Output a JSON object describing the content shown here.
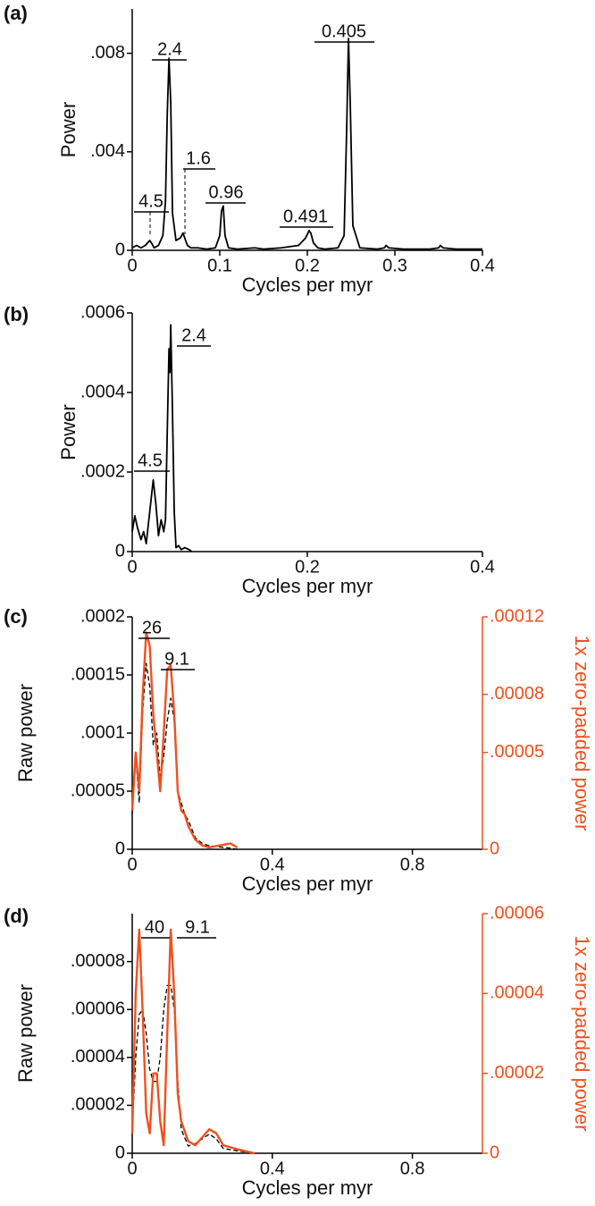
{
  "chart_data": [
    {
      "type": "line",
      "title": "(a)",
      "xlabel": "Cycles per myr",
      "ylabel": "Power",
      "xlim": [
        0,
        0.4
      ],
      "xticks": [
        0,
        0.1,
        0.2,
        0.3,
        0.4
      ],
      "ylim": [
        0,
        0.0098
      ],
      "yticks": [
        0,
        {
          "value": 0.004,
          "label": ".004"
        },
        {
          "value": 0.008,
          "label": ".008"
        }
      ],
      "x": [
        0,
        0.005,
        0.01,
        0.015,
        0.02,
        0.022,
        0.025,
        0.03,
        0.035,
        0.038,
        0.04,
        0.042,
        0.044,
        0.046,
        0.05,
        0.055,
        0.058,
        0.06,
        0.063,
        0.067,
        0.075,
        0.085,
        0.095,
        0.1,
        0.102,
        0.104,
        0.106,
        0.11,
        0.12,
        0.14,
        0.15,
        0.17,
        0.19,
        0.198,
        0.202,
        0.204,
        0.207,
        0.212,
        0.22,
        0.235,
        0.242,
        0.245,
        0.247,
        0.249,
        0.252,
        0.26,
        0.28,
        0.288,
        0.29,
        0.293,
        0.31,
        0.34,
        0.35,
        0.352,
        0.355,
        0.37,
        0.4
      ],
      "series": [
        {
          "color": "#000000",
          "linestyle": "solid",
          "values": [
            0.0001,
            0.0002,
            0.0001,
            0.0002,
            0.0004,
            0.0003,
            0.0001,
            0.0002,
            0.0006,
            0.002,
            0.0055,
            0.0078,
            0.006,
            0.0015,
            0.0004,
            0.0005,
            0.0007,
            0.0005,
            0.0002,
            0.0001,
            0.0001,
            5e-05,
            0.0001,
            0.0006,
            0.0016,
            0.0018,
            0.0006,
            0.0001,
            5e-05,
            0.0001,
            5e-05,
            0.0001,
            0.0002,
            0.0005,
            0.0008,
            0.0007,
            0.0003,
            0.0001,
            5e-05,
            0.0001,
            0.0006,
            0.005,
            0.0086,
            0.006,
            0.001,
            0.0001,
            5e-05,
            0.0001,
            0.0002,
            0.0001,
            5e-05,
            5e-05,
            0.0001,
            0.0002,
            0.0001,
            5e-05,
            5e-05
          ]
        }
      ],
      "annotations": [
        "4.5",
        "2.4",
        "1.6",
        "0.96",
        "0.491",
        "0.405"
      ]
    },
    {
      "type": "line",
      "title": "(b)",
      "xlabel": "Cycles per myr",
      "ylabel": "Power",
      "xlim": [
        0,
        0.4
      ],
      "xticks": [
        0,
        0.2,
        0.4
      ],
      "ylim": [
        0,
        0.0006
      ],
      "yticks": [
        0,
        {
          "value": 0.0002,
          "label": ".0002"
        },
        {
          "value": 0.0004,
          "label": ".0004"
        },
        {
          "value": 0.0006,
          "label": ".0006"
        }
      ],
      "x": [
        0,
        0.003,
        0.006,
        0.01,
        0.013,
        0.016,
        0.02,
        0.024,
        0.027,
        0.03,
        0.033,
        0.036,
        0.038,
        0.04,
        0.042,
        0.043,
        0.044,
        0.046,
        0.048,
        0.05,
        0.053,
        0.056,
        0.06,
        0.065,
        0.068
      ],
      "series": [
        {
          "color": "#000000",
          "linestyle": "solid",
          "values": [
            5e-05,
            9e-05,
            6e-05,
            3e-05,
            5e-05,
            2e-05,
            0.0001,
            0.00018,
            0.00012,
            4e-05,
            8e-05,
            5e-05,
            8e-05,
            0.0003,
            0.00051,
            0.00045,
            0.00057,
            0.00035,
            0.0001,
            1e-05,
            1.5e-05,
            5e-06,
            1e-05,
            5e-06,
            0
          ]
        }
      ],
      "annotations": [
        "4.5",
        "2.4"
      ]
    },
    {
      "type": "line",
      "title": "(c)",
      "xlabel": "Cycles per myr",
      "ylabel": "Raw power",
      "y2label": "1x zero-padded power",
      "y2color": "#f0501e",
      "xlim": [
        0,
        1
      ],
      "xticks": [
        0,
        0.4,
        0.8
      ],
      "ylim": [
        0,
        0.0002
      ],
      "yticks": [
        0,
        {
          "value": 5e-05,
          "label": ".00005"
        },
        {
          "value": 0.0001,
          "label": ".0001"
        },
        {
          "value": 0.00015,
          "label": ".00015"
        },
        {
          "value": 0.0002,
          "label": ".0002"
        }
      ],
      "y2lim": [
        0,
        0.00012
      ],
      "y2ticks": [
        0,
        {
          "value": 5e-05,
          "label": ".00005"
        },
        {
          "value": 8e-05,
          "label": ".00008"
        },
        {
          "value": 0.00012,
          "label": ".00012"
        }
      ],
      "x": [
        0,
        0.01,
        0.02,
        0.03,
        0.04,
        0.05,
        0.06,
        0.07,
        0.08,
        0.09,
        0.1,
        0.11,
        0.12,
        0.13,
        0.14,
        0.15,
        0.16,
        0.18,
        0.2,
        0.22,
        0.25,
        0.28,
        0.3
      ],
      "series": [
        {
          "color": "#000000",
          "linestyle": "dashed",
          "values": [
            3e-05,
            8e-05,
            4e-05,
            0.00012,
            0.00016,
            0.00014,
            9e-05,
            0.0001,
            6e-05,
            8e-05,
            0.00011,
            0.00013,
            0.00011,
            5e-05,
            4e-05,
            3e-05,
            2.5e-05,
            1e-05,
            5e-06,
            3e-06,
            2e-06,
            1e-06,
            0
          ]
        },
        {
          "color": "#f0501e",
          "linestyle": "solid",
          "axis": "y2",
          "values": [
            2e-05,
            5e-05,
            3e-05,
            8e-05,
            0.000112,
            0.000105,
            7e-05,
            5e-05,
            3e-05,
            6e-05,
            9.3e-05,
            9.5e-05,
            7e-05,
            3e-05,
            2e-05,
            1.8e-05,
            1.2e-05,
            5e-06,
            2e-06,
            1e-06,
            2e-06,
            3e-06,
            1e-06
          ]
        }
      ],
      "annotations": [
        "26",
        "9.1"
      ]
    },
    {
      "type": "line",
      "title": "(d)",
      "xlabel": "Cycles per myr",
      "ylabel": "Raw power",
      "y2label": "1x zero-padded power",
      "y2color": "#f0501e",
      "xlim": [
        0,
        1
      ],
      "xticks": [
        0,
        0.4,
        0.8
      ],
      "ylim": [
        0,
        0.0001
      ],
      "yticks": [
        0,
        {
          "value": 2e-05,
          "label": ".00002"
        },
        {
          "value": 4e-05,
          "label": ".00004"
        },
        {
          "value": 6e-05,
          "label": ".00006"
        },
        {
          "value": 8e-05,
          "label": ".00008"
        }
      ],
      "y2lim": [
        0,
        6e-05
      ],
      "y2ticks": [
        0,
        {
          "value": 2e-05,
          "label": ".00002"
        },
        {
          "value": 4e-05,
          "label": ".00004"
        },
        {
          "value": 6e-05,
          "label": ".00006"
        }
      ],
      "x": [
        0,
        0.01,
        0.02,
        0.03,
        0.04,
        0.05,
        0.06,
        0.07,
        0.08,
        0.09,
        0.1,
        0.11,
        0.12,
        0.13,
        0.14,
        0.16,
        0.18,
        0.2,
        0.22,
        0.24,
        0.26,
        0.3,
        0.35
      ],
      "series": [
        {
          "color": "#000000",
          "linestyle": "dashed",
          "values": [
            1e-05,
            4e-05,
            5.8e-05,
            6e-05,
            5e-05,
            3.5e-05,
            3e-05,
            3e-05,
            4e-05,
            6e-05,
            7e-05,
            7e-05,
            6e-05,
            3e-05,
            1e-05,
            3e-06,
            4e-06,
            6e-06,
            8e-06,
            6e-06,
            2e-06,
            1e-06,
            0
          ]
        },
        {
          "color": "#f0501e",
          "linestyle": "solid",
          "axis": "y2",
          "values": [
            5e-06,
            4e-05,
            5.6e-05,
            3.5e-05,
            1e-05,
            5e-06,
            2e-05,
            2e-05,
            8e-06,
            2e-06,
            3e-05,
            5.6e-05,
            4e-05,
            1.5e-05,
            8e-06,
            3e-06,
            2e-06,
            4e-06,
            6e-06,
            5e-06,
            2e-06,
            1e-06,
            0
          ]
        }
      ],
      "annotations": [
        "40",
        "9.1"
      ]
    }
  ]
}
